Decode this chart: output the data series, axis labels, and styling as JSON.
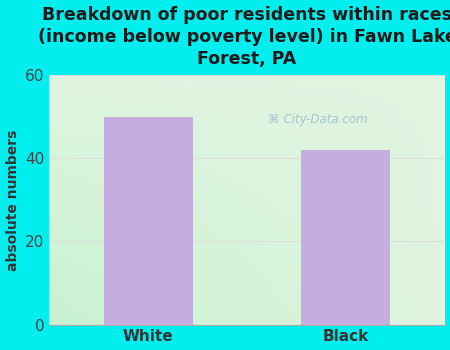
{
  "categories": [
    "White",
    "Black"
  ],
  "values": [
    50,
    42
  ],
  "bar_color": "#C4AEE0",
  "title": "Breakdown of poor residents within races\n(income below poverty level) in Fawn Lake\nForest, PA",
  "ylabel": "absolute numbers",
  "ylim": [
    0,
    60
  ],
  "yticks": [
    0,
    20,
    40,
    60
  ],
  "background_color": "#00EEEE",
  "title_fontsize": 12.5,
  "axis_fontsize": 10,
  "tick_fontsize": 11,
  "bar_width": 0.45,
  "watermark_text": "City-Data.com",
  "watermark_color": "#99BBCC",
  "grid_color": "#dddddd",
  "plot_bg_left": "#c8edcc",
  "plot_bg_right": "#eaf4f0"
}
